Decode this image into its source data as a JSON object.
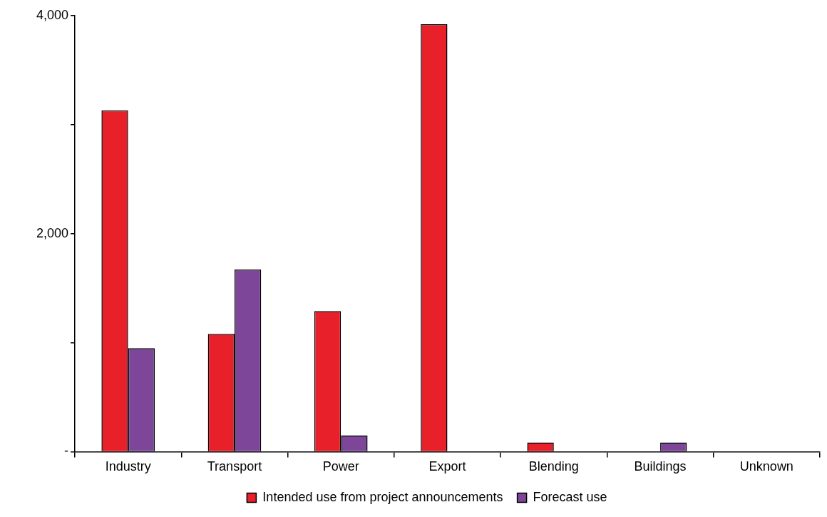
{
  "chart_data": {
    "type": "bar",
    "categories": [
      "Industry",
      "Transport",
      "Power",
      "Export",
      "Blending",
      "Buildings",
      "Unknown"
    ],
    "series": [
      {
        "name": "Intended use from project announcements",
        "color": "#e8202a",
        "values": [
          3130,
          1080,
          1290,
          3920,
          85,
          null,
          5
        ]
      },
      {
        "name": "Forecast use",
        "color": "#7e4699",
        "values": [
          950,
          1670,
          150,
          null,
          null,
          85,
          null
        ]
      }
    ],
    "ylim": [
      0,
      4000
    ],
    "yticks": [
      {
        "value": 0,
        "label": "-"
      },
      {
        "value": 1000,
        "label": null
      },
      {
        "value": 2000,
        "label": "2,000"
      },
      {
        "value": 3000,
        "label": null
      },
      {
        "value": 4000,
        "label": "4,000"
      }
    ],
    "grid": false,
    "legend": "bottom"
  }
}
